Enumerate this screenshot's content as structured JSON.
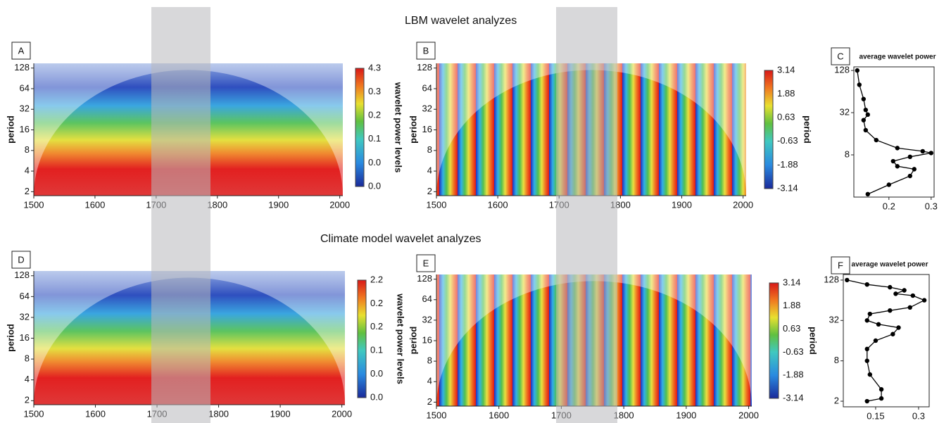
{
  "top_title": "LBM wavelet analyzes",
  "bottom_title": "Climate model wavelet analyzes",
  "chart_data": [
    {
      "type": "heatmap",
      "label": "A",
      "style": "power",
      "ylabel": "period",
      "xlim": [
        1500,
        2005
      ],
      "xticks": [
        1500,
        1600,
        1700,
        1800,
        1900,
        2000
      ],
      "ylim": [
        1.75,
        150
      ],
      "ylog": true,
      "yticks": [
        2,
        4,
        8,
        16,
        32,
        64,
        128
      ],
      "colorbar_label": "wavelet power levels",
      "colorbar_ticks": [
        "4.3",
        "0.3",
        "0.2",
        "0.1",
        "0.0",
        "0.0"
      ]
    },
    {
      "type": "heatmap",
      "label": "B",
      "style": "phase",
      "ylabel": "period",
      "xlim": [
        1500,
        2005
      ],
      "xticks": [
        1500,
        1600,
        1700,
        1800,
        1900,
        2000
      ],
      "ylim": [
        1.75,
        150
      ],
      "ylog": true,
      "yticks": [
        2,
        4,
        8,
        16,
        32,
        64,
        128
      ],
      "colorbar_label": "period",
      "colorbar_ticks": [
        3.14,
        1.88,
        0.63,
        -0.63,
        -1.88,
        -3.14
      ]
    },
    {
      "type": "line",
      "label": "C",
      "title": "average wavelet power",
      "color": "#000000",
      "markers": true,
      "xlim": [
        0.117,
        0.307
      ],
      "xticks": [
        0.2,
        0.3
      ],
      "ylim": [
        2,
        144
      ],
      "ylog": true,
      "yticks": [
        8,
        32,
        128
      ],
      "x": [
        0.125,
        0.13,
        0.14,
        0.145,
        0.15,
        0.14,
        0.145,
        0.17,
        0.22,
        0.28,
        0.3,
        0.25,
        0.21,
        0.22,
        0.26,
        0.25,
        0.2,
        0.15
      ],
      "values": [
        128,
        80,
        50,
        35,
        30,
        25,
        18,
        13,
        10,
        9,
        8.5,
        7.5,
        6.5,
        5.5,
        5,
        4,
        3,
        2.2
      ]
    },
    {
      "type": "heatmap",
      "label": "D",
      "style": "power",
      "ylabel": "period",
      "xlim": [
        1500,
        2005
      ],
      "xticks": [
        1500,
        1600,
        1700,
        1800,
        1900,
        2000
      ],
      "ylim": [
        1.75,
        150
      ],
      "ylog": true,
      "yticks": [
        2,
        4,
        8,
        16,
        32,
        64,
        128
      ],
      "colorbar_label": "wavelet power levels",
      "colorbar_ticks": [
        "2.2",
        "0.2",
        "0.2",
        "0.1",
        "0.0",
        "0.0"
      ]
    },
    {
      "type": "heatmap",
      "label": "E",
      "style": "phase",
      "ylabel": "period",
      "xlim": [
        1500,
        2005
      ],
      "xticks": [
        1500,
        1600,
        1700,
        1800,
        1900,
        2000
      ],
      "ylim": [
        1.75,
        150
      ],
      "ylog": true,
      "yticks": [
        2,
        4,
        8,
        16,
        32,
        64,
        128
      ],
      "colorbar_label": "period",
      "colorbar_ticks": [
        3.14,
        1.88,
        0.63,
        -0.63,
        -1.88,
        -3.14
      ]
    },
    {
      "type": "line",
      "label": "F",
      "title": "average wavelet power",
      "color": "#000000",
      "markers": true,
      "xlim": [
        0.037,
        0.337
      ],
      "xticks": [
        0.15,
        0.3
      ],
      "ylim": [
        1.65,
        155
      ],
      "ylog": true,
      "yticks": [
        2,
        8,
        32,
        128
      ],
      "x": [
        0.05,
        0.12,
        0.2,
        0.25,
        0.22,
        0.28,
        0.32,
        0.27,
        0.2,
        0.13,
        0.12,
        0.16,
        0.23,
        0.21,
        0.15,
        0.12,
        0.12,
        0.13,
        0.17,
        0.17,
        0.12
      ],
      "values": [
        128,
        110,
        100,
        90,
        80,
        75,
        64,
        50,
        45,
        40,
        32,
        28,
        25,
        20,
        16,
        12,
        8,
        5,
        3,
        2.2,
        2
      ]
    }
  ]
}
